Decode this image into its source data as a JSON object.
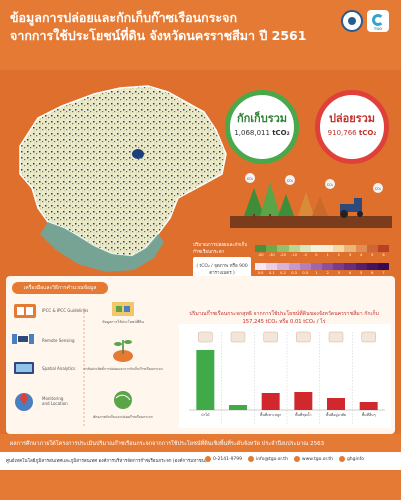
{
  "header": {
    "title_line1": "ข้อมูลการปล่อยและกักเก็บก๊าซเรือนกระจก",
    "title_line2": "จากการใช้ประโยชน์ที่ดิน จังหวัดนครราชสีมา ปี 2561"
  },
  "stats": {
    "stored_label": "กักเก็บรวม",
    "stored_value": "1,068,011",
    "emitted_label": "ปล่อยรวม",
    "emitted_value": "910,766",
    "unit": "tCO₂"
  },
  "scene": {
    "co2_tag": "CO₂"
  },
  "legend": {
    "label": "ปริมาณการปล่อยและกักเก็บก๊าซเรือนกระจก",
    "unit_note": "( tCO₂ / จุดภาพ หรือ 900 ตารางเมตร )",
    "ramp_top": [
      "#4a8f3c",
      "#6ea94a",
      "#93c06a",
      "#b8d690",
      "#d8e8bc",
      "#eef4e0",
      "#f7efd5",
      "#f2d9a6",
      "#e9b779",
      "#df8f54",
      "#cf6438",
      "#b84024"
    ],
    "ramp_bottom": [
      "#f5e9f5",
      "#e7cfe8",
      "#d7b3da",
      "#c699cb",
      "#b47fbb",
      "#a166ab",
      "#8d509a",
      "#7a3d8a",
      "#682d7b",
      "#561f6c",
      "#45135d",
      "#350a4e"
    ],
    "nums_top": [
      "-40",
      "-30",
      "-20",
      "-10",
      "-5",
      "0",
      "1",
      "2",
      "3",
      "4",
      "5",
      "6"
    ],
    "nums_bottom": [
      "0.0",
      "0.1",
      "0.2",
      "0.3",
      "0.5",
      "1",
      "2",
      "3",
      "4",
      "5",
      "6",
      "7"
    ]
  },
  "infobox": {
    "tab_label": "เครื่องมือและวิธีการคำนวณข้อมูล",
    "guidelines_label": "IPCC & IPCC Guidelines",
    "sensing_label": "Remote Sensing",
    "spatial_label": "Spatial Analytics",
    "monitoring_label": "Monitoring and Location",
    "flow1_label": "ข้อมูลการใช้ประโยชน์ที่ดิน",
    "flow2_label": "ค่าสัมประสิทธิ์การปล่อยและการกักเก็บก๊าซเรือนกระจก",
    "flow3_label": "ศักยภาพกักเก็บและปล่อยก๊าซเรือนกระจก"
  },
  "chart_data": {
    "type": "bar",
    "title": "ปริมาณก๊าซเรือนกระจกสุทธิ จากการใช้ประโยชน์ที่ดินของจังหวัดนครราชสีมา กักเก็บ 157,245 tCO₂ หรือ 0.01 tCO₂ / ไร่",
    "categories": [
      "ป่าไม้",
      "เกษตร",
      "พื้นที่ชุ่มน้ำ",
      "พื้นที่เกษตร",
      "ที่อยู่อาศัย",
      "พื้นที่อื่นๆ"
    ],
    "category_labels": [
      "ป่าไม้",
      "",
      "พื้นที่เพาะปลูก",
      "พื้นที่ชุ่มน้ำ",
      "พื้นที่อยู่อาศัย",
      "พื้นที่อื่นๆ"
    ],
    "series": [
      {
        "name": "กักเก็บ",
        "values": [
          60,
          5,
          0,
          0,
          0,
          0
        ],
        "color": "#3faa47"
      },
      {
        "name": "ปล่อย",
        "values": [
          0,
          0,
          17,
          18,
          12,
          8
        ],
        "color": "#d0282c"
      }
    ],
    "tick_labels": [
      "",
      "",
      "",
      "",
      ""
    ]
  },
  "footer": {
    "note": "ผลการศึกษาภายใต้โครงการประเมินปริมาณก๊าซเรือนกระจกจากการใช้ประโยชน์ที่ดินเชิงพื้นที่ระดับจังหวัด ประจำปีงบประมาณ 2563",
    "org": "ศูนย์เทคโนโลยีภูมิสารสนเทศและภูมิสารสนเทศ องค์การบริหารจัดการก๊าซเรือนกระจก (องค์การมหาชน)",
    "phone": "0-2141-9799",
    "email": "info@tgo.or.th",
    "web": "www.tgo.or.th",
    "social": "ghginfo"
  }
}
